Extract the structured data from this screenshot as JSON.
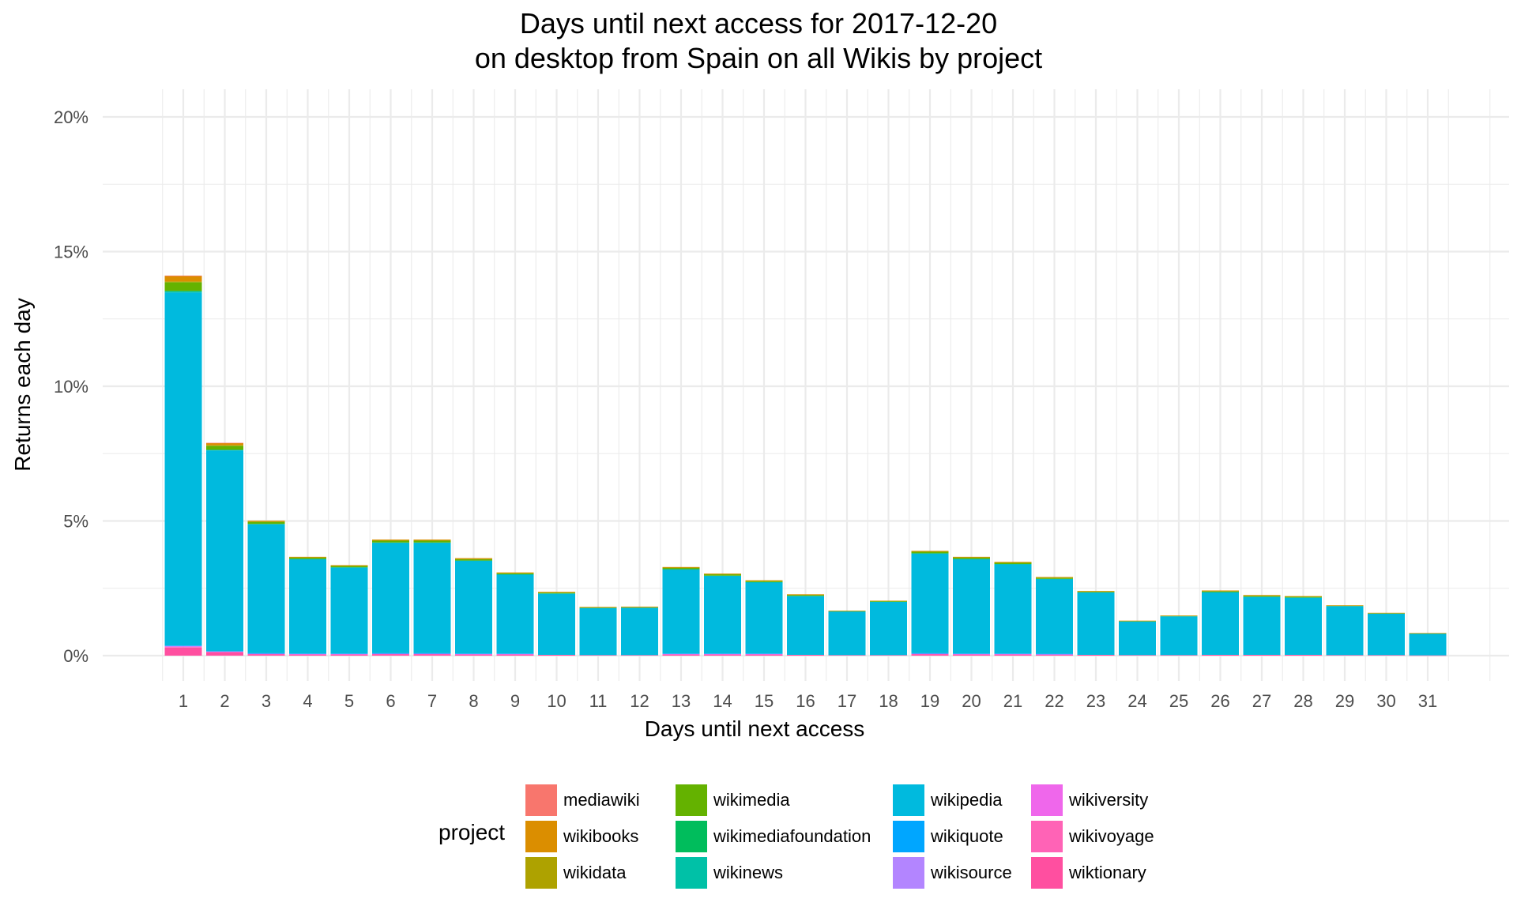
{
  "title": {
    "line1": "Days until next access for 2017-12-20",
    "line2": "on desktop from Spain on all Wikis by project"
  },
  "chart_data": {
    "type": "bar",
    "stacked": true,
    "title": "Days until next access for 2017-12-20 on desktop from Spain on all Wikis by project",
    "xlabel": "Days until next access",
    "ylabel": "Returns each day",
    "ylim": [
      0,
      20
    ],
    "y_ticks": [
      "0%",
      "5%",
      "10%",
      "15%",
      "20%"
    ],
    "categories": [
      "1",
      "2",
      "3",
      "4",
      "5",
      "6",
      "7",
      "8",
      "9",
      "10",
      "11",
      "12",
      "13",
      "14",
      "15",
      "16",
      "17",
      "18",
      "19",
      "20",
      "21",
      "22",
      "23",
      "24",
      "25",
      "26",
      "27",
      "28",
      "29",
      "30",
      "31"
    ],
    "legend_title": "project",
    "legend_position": "bottom",
    "grid": true,
    "series": [
      {
        "name": "mediawiki",
        "color": "#F8766D",
        "values": [
          0.02,
          0.01,
          0,
          0,
          0,
          0,
          0,
          0,
          0,
          0,
          0,
          0,
          0,
          0,
          0,
          0,
          0,
          0,
          0,
          0,
          0,
          0,
          0,
          0,
          0,
          0,
          0,
          0,
          0,
          0,
          0
        ]
      },
      {
        "name": "wikibooks",
        "color": "#DB8E00",
        "values": [
          0.2,
          0.08,
          0.03,
          0.02,
          0.02,
          0.03,
          0.03,
          0.03,
          0.02,
          0.02,
          0.01,
          0.01,
          0.02,
          0.02,
          0.02,
          0.02,
          0.01,
          0.01,
          0.02,
          0.02,
          0.02,
          0.02,
          0.01,
          0.01,
          0.01,
          0.02,
          0.02,
          0.01,
          0.01,
          0.01,
          0.01
        ]
      },
      {
        "name": "wikidata",
        "color": "#AEA200",
        "values": [
          0.03,
          0.02,
          0.01,
          0.01,
          0.01,
          0.01,
          0.01,
          0.01,
          0.01,
          0.01,
          0.01,
          0.01,
          0.01,
          0.01,
          0.01,
          0.01,
          0,
          0,
          0.01,
          0.01,
          0.01,
          0.01,
          0.01,
          0,
          0,
          0.01,
          0.01,
          0.01,
          0,
          0,
          0
        ]
      },
      {
        "name": "wikimedia",
        "color": "#64B200",
        "values": [
          0.32,
          0.15,
          0.08,
          0.05,
          0.05,
          0.07,
          0.07,
          0.05,
          0.04,
          0.03,
          0.02,
          0.02,
          0.05,
          0.05,
          0.04,
          0.03,
          0.02,
          0.03,
          0.06,
          0.05,
          0.05,
          0.04,
          0.03,
          0.02,
          0.02,
          0.03,
          0.03,
          0.03,
          0.02,
          0.02,
          0.01
        ]
      },
      {
        "name": "wikimediafoundation",
        "color": "#00BD5C",
        "values": [
          0.01,
          0,
          0,
          0,
          0,
          0,
          0,
          0,
          0,
          0,
          0,
          0,
          0,
          0,
          0,
          0,
          0,
          0,
          0,
          0,
          0,
          0,
          0,
          0,
          0,
          0,
          0,
          0,
          0,
          0,
          0
        ]
      },
      {
        "name": "wikinews",
        "color": "#00C1A7",
        "values": [
          0.05,
          0.02,
          0.01,
          0.01,
          0.01,
          0.01,
          0.01,
          0.01,
          0.01,
          0.01,
          0,
          0,
          0.01,
          0.01,
          0.01,
          0.01,
          0,
          0,
          0.01,
          0.01,
          0.01,
          0.01,
          0,
          0,
          0,
          0.01,
          0.01,
          0.01,
          0,
          0,
          0
        ]
      },
      {
        "name": "wikipedia",
        "color": "#00BADE",
        "values": [
          13.1,
          7.45,
          4.79,
          3.5,
          3.19,
          4.1,
          4.1,
          3.44,
          2.93,
          2.27,
          1.75,
          1.76,
          3.12,
          2.88,
          2.64,
          2.18,
          1.62,
          1.98,
          3.7,
          3.5,
          3.31,
          2.77,
          2.32,
          1.25,
          1.44,
          2.32,
          2.15,
          2.12,
          1.82,
          1.54,
          0.81
        ]
      },
      {
        "name": "wikiquote",
        "color": "#00A6FF",
        "values": [
          0.02,
          0.01,
          0.01,
          0.01,
          0.01,
          0.01,
          0.01,
          0.01,
          0.01,
          0,
          0,
          0,
          0.01,
          0.01,
          0.01,
          0,
          0,
          0,
          0.01,
          0.01,
          0.01,
          0.01,
          0,
          0,
          0,
          0,
          0,
          0,
          0,
          0,
          0
        ]
      },
      {
        "name": "wikisource",
        "color": "#B385FF",
        "values": [
          0.02,
          0.01,
          0.01,
          0.01,
          0.01,
          0.01,
          0.01,
          0.01,
          0.01,
          0,
          0,
          0,
          0.01,
          0.01,
          0.01,
          0,
          0,
          0,
          0.01,
          0.01,
          0.01,
          0.01,
          0,
          0,
          0,
          0,
          0,
          0,
          0,
          0,
          0
        ]
      },
      {
        "name": "wikiversity",
        "color": "#EF67EB",
        "values": [
          0.02,
          0.01,
          0.01,
          0.01,
          0.01,
          0.01,
          0.01,
          0.01,
          0.01,
          0,
          0,
          0,
          0.01,
          0.01,
          0.01,
          0,
          0,
          0,
          0.01,
          0.01,
          0.01,
          0.01,
          0,
          0,
          0,
          0,
          0,
          0,
          0,
          0,
          0
        ]
      },
      {
        "name": "wikivoyage",
        "color": "#FF63B6",
        "values": [
          0.02,
          0.01,
          0.01,
          0.01,
          0.01,
          0.01,
          0.01,
          0.01,
          0.01,
          0,
          0,
          0,
          0.01,
          0.01,
          0.01,
          0,
          0,
          0,
          0.01,
          0.01,
          0.01,
          0.01,
          0,
          0,
          0,
          0,
          0,
          0,
          0,
          0,
          0
        ]
      },
      {
        "name": "wiktionary",
        "color": "#FF4FA0",
        "values": [
          0.3,
          0.13,
          0.05,
          0.04,
          0.04,
          0.05,
          0.05,
          0.04,
          0.04,
          0.03,
          0.02,
          0.02,
          0.04,
          0.04,
          0.04,
          0.03,
          0.02,
          0.02,
          0.05,
          0.04,
          0.04,
          0.03,
          0.03,
          0.02,
          0.02,
          0.03,
          0.03,
          0.03,
          0.02,
          0.02,
          0.01
        ]
      }
    ]
  }
}
